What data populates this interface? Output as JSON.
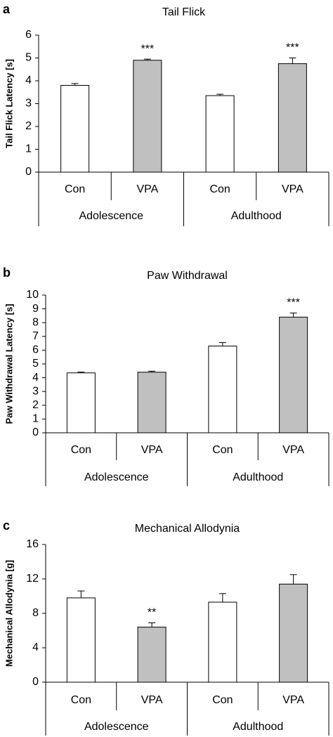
{
  "chart_data": [
    {
      "type": "bar",
      "panel": "a",
      "title": "Tail Flick",
      "ylabel": "Tail Flick Latency [s]",
      "categories": [
        "Con",
        "VPA",
        "Con",
        "VPA"
      ],
      "groups": [
        "Adolescence",
        "Adulthood"
      ],
      "values": [
        3.8,
        4.9,
        3.35,
        4.75
      ],
      "errors": [
        0.08,
        0.05,
        0.06,
        0.25
      ],
      "significance": [
        null,
        "***",
        null,
        "***"
      ],
      "colors": [
        "#ffffff",
        "#c0c0c0",
        "#ffffff",
        "#c0c0c0"
      ],
      "ylim": [
        0,
        6
      ],
      "yticks": [
        0,
        1,
        2,
        3,
        4,
        5,
        6
      ]
    },
    {
      "type": "bar",
      "panel": "b",
      "title": "Paw Withdrawal",
      "ylabel": "Paw Withdrawal Latency [s]",
      "categories": [
        "Con",
        "VPA",
        "Con",
        "VPA"
      ],
      "groups": [
        "Adolescence",
        "Adulthood"
      ],
      "values": [
        4.35,
        4.4,
        6.3,
        8.4
      ],
      "errors": [
        0.06,
        0.08,
        0.25,
        0.3
      ],
      "significance": [
        null,
        null,
        null,
        "***"
      ],
      "colors": [
        "#ffffff",
        "#c0c0c0",
        "#ffffff",
        "#c0c0c0"
      ],
      "ylim": [
        0,
        10
      ],
      "yticks": [
        0,
        1,
        2,
        3,
        4,
        5,
        6,
        7,
        8,
        9,
        10
      ]
    },
    {
      "type": "bar",
      "panel": "c",
      "title": "Mechanical Allodynia",
      "ylabel": "Mechanical Allodynia [g]",
      "categories": [
        "Con",
        "VPA",
        "Con",
        "VPA"
      ],
      "groups": [
        "Adolescence",
        "Adulthood"
      ],
      "values": [
        9.8,
        6.4,
        9.3,
        11.4
      ],
      "errors": [
        0.8,
        0.5,
        1.0,
        1.1
      ],
      "significance": [
        null,
        "**",
        null,
        null
      ],
      "colors": [
        "#ffffff",
        "#c0c0c0",
        "#ffffff",
        "#c0c0c0"
      ],
      "ylim": [
        0,
        16
      ],
      "yticks": [
        0,
        4,
        8,
        12,
        16
      ]
    }
  ]
}
